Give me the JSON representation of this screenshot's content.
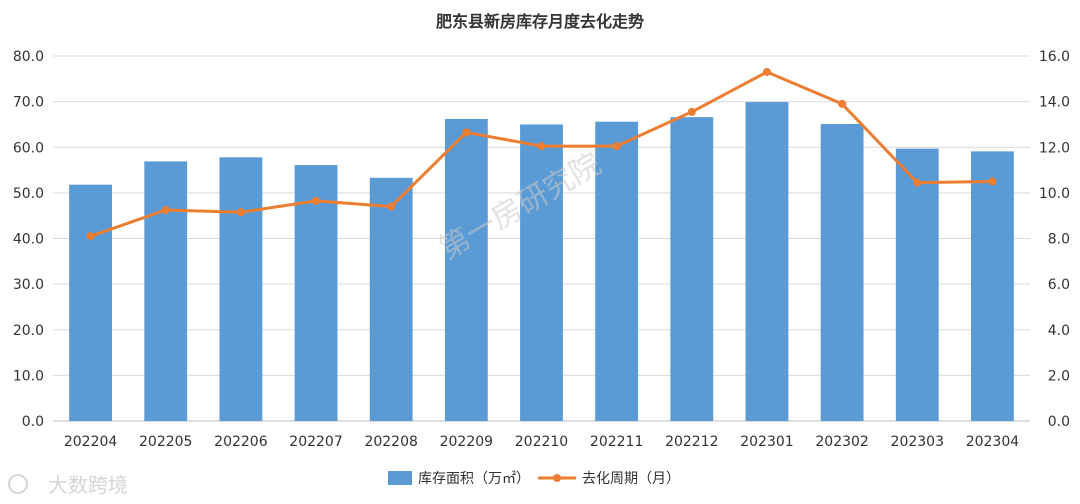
{
  "chart_data": {
    "type": "bar",
    "title": "肥东县新房库存月度去化走势",
    "categories": [
      "202204",
      "202205",
      "202206",
      "202207",
      "202208",
      "202209",
      "202210",
      "202211",
      "202212",
      "202301",
      "202302",
      "202303",
      "202304"
    ],
    "series": [
      {
        "name": "库存面积（万㎡）",
        "type": "bar",
        "axis": "left",
        "color": "#5b9bd5",
        "values": [
          51.8,
          56.9,
          57.8,
          56.1,
          53.3,
          66.2,
          65.0,
          65.6,
          66.6,
          69.9,
          65.1,
          59.7,
          59.1
        ]
      },
      {
        "name": "去化周期（月）",
        "type": "line",
        "axis": "right",
        "color": "#ed7d31",
        "values": [
          8.1,
          9.25,
          9.15,
          9.65,
          9.4,
          12.65,
          12.05,
          12.05,
          13.55,
          15.3,
          13.9,
          10.45,
          10.5
        ]
      }
    ],
    "y_left": {
      "min": 0,
      "max": 80,
      "step": 10,
      "tick_labels": [
        "0.0",
        "10.0",
        "20.0",
        "30.0",
        "40.0",
        "50.0",
        "60.0",
        "70.0",
        "80.0"
      ]
    },
    "y_right": {
      "min": 0,
      "max": 16,
      "step": 2,
      "tick_labels": [
        "0.0",
        "2.0",
        "4.0",
        "6.0",
        "8.0",
        "10.0",
        "12.0",
        "14.0",
        "16.0"
      ]
    },
    "grid": true,
    "legend_position": "bottom"
  },
  "watermark": "第一房研究院",
  "brand": "大数跨境"
}
